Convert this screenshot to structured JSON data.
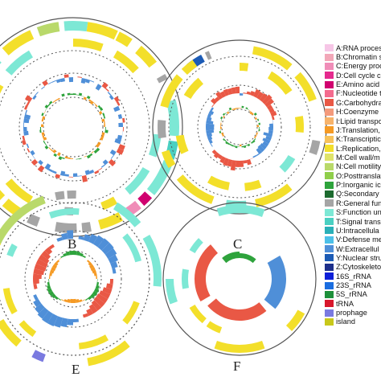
{
  "panels": [
    {
      "id": "B",
      "label": "B"
    },
    {
      "id": "C",
      "label": "C"
    },
    {
      "id": "E",
      "label": "E"
    },
    {
      "id": "F",
      "label": "F"
    }
  ],
  "legend": [
    {
      "label": "A:RNA proces",
      "color": "#f6c6e6"
    },
    {
      "label": "B:Chromatin s",
      "color": "#f2a7b8"
    },
    {
      "label": "C:Energy proc",
      "color": "#f08db8"
    },
    {
      "label": "D:Cell cycle c",
      "color": "#e52a8e"
    },
    {
      "label": "E:Amino acid",
      "color": "#d0006f"
    },
    {
      "label": "F:Nucleotide t",
      "color": "#f46b8e"
    },
    {
      "label": "G:Carbohydra",
      "color": "#e95845"
    },
    {
      "label": "H:Coenzyme",
      "color": "#f49a7c"
    },
    {
      "label": "I:Lipid transpo",
      "color": "#f7b36b"
    },
    {
      "label": "J:Translation,",
      "color": "#f59a24"
    },
    {
      "label": "K:Transcriptic",
      "color": "#f7c25a"
    },
    {
      "label": "L:Replication,",
      "color": "#f3df2a"
    },
    {
      "label": "M:Cell wall/m",
      "color": "#dfe36a"
    },
    {
      "label": "N:Cell motility",
      "color": "#b9d96a"
    },
    {
      "label": "O:Posttranslat",
      "color": "#8fce4a"
    },
    {
      "label": "P:Inorganic ic",
      "color": "#2ea33c"
    },
    {
      "label": "Q:Secondary",
      "color": "#1d6b2f"
    },
    {
      "label": "R:General fun",
      "color": "#a5a5a5"
    },
    {
      "label": "S:Function un",
      "color": "#7de8d5"
    },
    {
      "label": "T:Signal trans",
      "color": "#4ad0c2"
    },
    {
      "label": "U:Intracellula",
      "color": "#2ab0b8"
    },
    {
      "label": "V:Defense me",
      "color": "#4cc0e8"
    },
    {
      "label": "W:Extracellul",
      "color": "#4f8fd8"
    },
    {
      "label": "Y:Nuclear stru",
      "color": "#1c5bb5"
    },
    {
      "label": "Z:Cytoskeleto",
      "color": "#1d2f8a"
    },
    {
      "label": "16S_rRNA",
      "color": "#0d1fd8"
    },
    {
      "label": "23S_rRNA",
      "color": "#1a6de0"
    },
    {
      "label": "5S_rRNA",
      "color": "#1e8f3a"
    },
    {
      "label": "tRNA",
      "color": "#d8172c"
    },
    {
      "label": "prophage",
      "color": "#7a7ae0"
    },
    {
      "label": "island",
      "color": "#c8c81a"
    }
  ]
}
